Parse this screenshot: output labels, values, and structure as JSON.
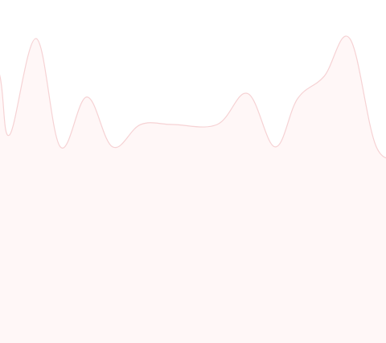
{
  "sparkline": {
    "values": [
      0.78,
      0.44,
      1.0,
      0.37,
      0.66,
      0.37,
      0.5,
      0.5,
      0.5,
      0.68,
      0.37,
      0.65,
      0.78,
      1.0,
      0.37
    ],
    "ylim": [
      0,
      1
    ]
  },
  "colors": {
    "background": "#ffffff",
    "area_fill": "#fff7f7",
    "line_stroke": "#f6d2d4"
  }
}
